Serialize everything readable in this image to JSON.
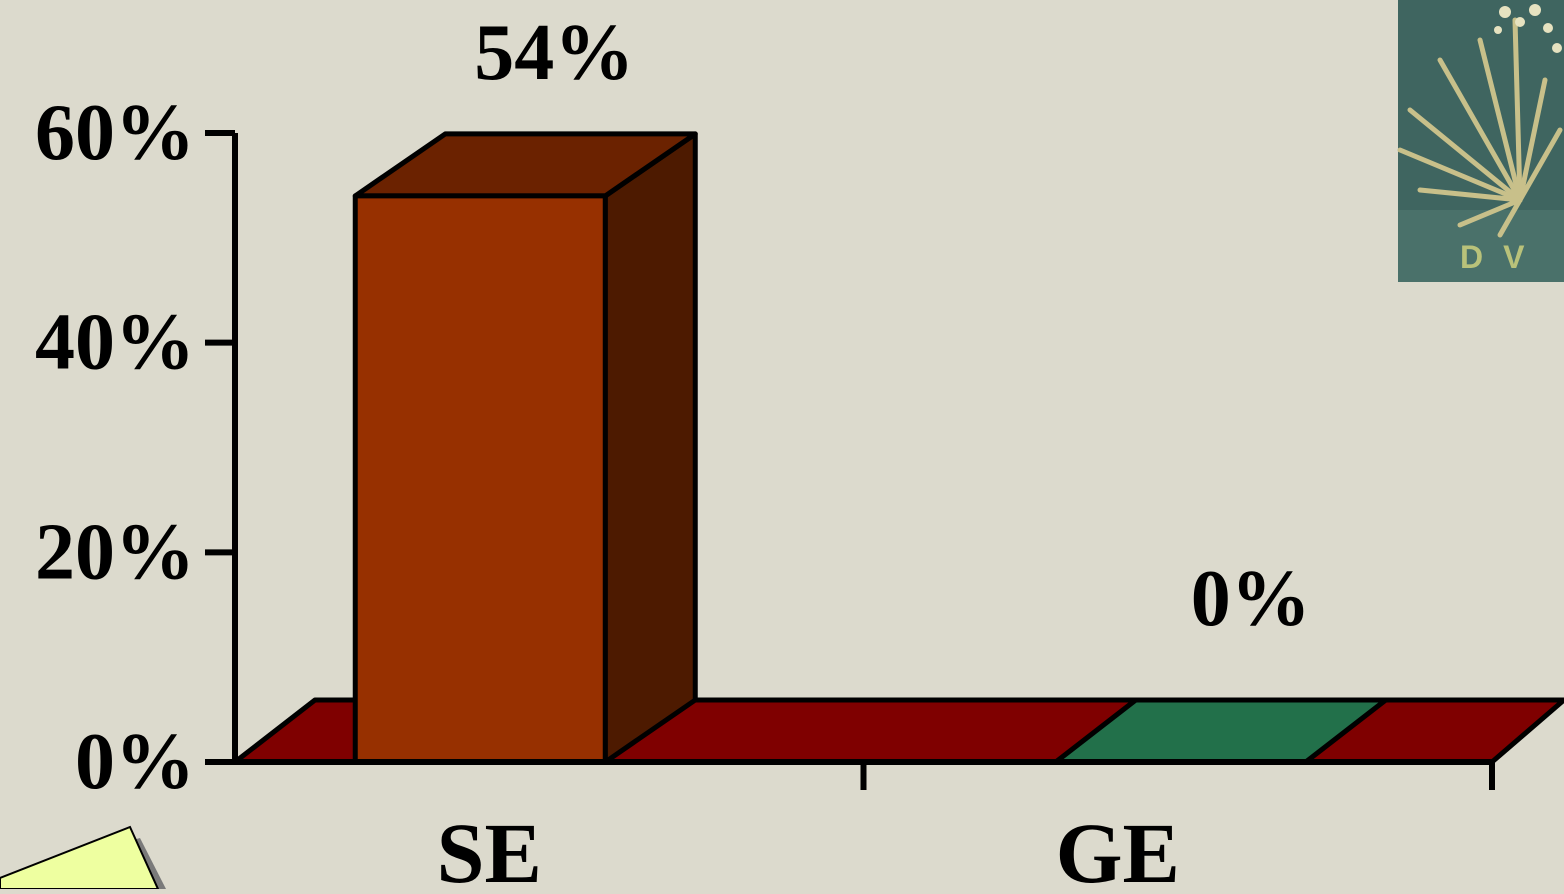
{
  "chart_data": {
    "type": "bar",
    "categories": [
      "SE",
      "GE"
    ],
    "values": [
      54,
      0
    ],
    "data_labels": [
      "54%",
      "0%"
    ],
    "ylim": [
      0,
      60
    ],
    "yticks": [
      0,
      20,
      40,
      60
    ],
    "ytick_labels": [
      "0%",
      "20%",
      "40%",
      "60%"
    ],
    "title": "",
    "xlabel": "",
    "ylabel": "",
    "three_d": true,
    "grid": false,
    "legend": "none",
    "colors": {
      "bar_SE_front": "#973000",
      "bar_SE_top": "#6b2200",
      "bar_SE_side": "#4d1a00",
      "bar_GE_top": "#22704a",
      "floor": "#7f0000",
      "background": "#dcdacd"
    }
  },
  "decorations": {
    "corner_image": {
      "icon": "agave-plant-image",
      "visible_text": "DV"
    },
    "corner_note": {
      "icon": "sticky-note-icon",
      "color": "#eeffa0"
    }
  }
}
